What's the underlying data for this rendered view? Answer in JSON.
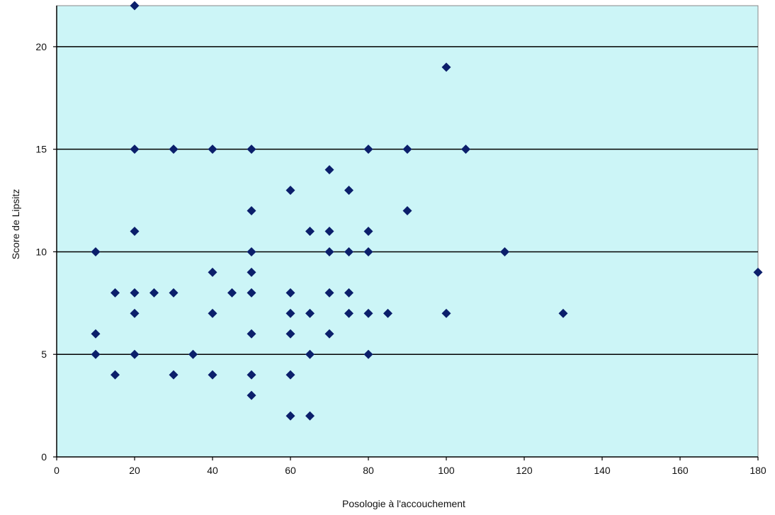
{
  "chart_data": {
    "type": "scatter",
    "title": "",
    "xlabel": "Posologie à l'accouchement",
    "ylabel": "Score de Lipsitz",
    "xlim": [
      0,
      180
    ],
    "ylim": [
      0,
      22
    ],
    "xticks": [
      0,
      20,
      40,
      60,
      80,
      100,
      120,
      140,
      160,
      180
    ],
    "yticks": [
      0,
      5,
      10,
      15,
      20
    ],
    "grid": "horizontal major lines",
    "legend": "none",
    "colors": {
      "plot_background": "#ccf5f7",
      "marker": "#0b1f6b",
      "gridline": "#000000"
    },
    "marker_shape": "diamond",
    "points": [
      {
        "x": 20,
        "y": 22
      },
      {
        "x": 100,
        "y": 19
      },
      {
        "x": 20,
        "y": 15
      },
      {
        "x": 30,
        "y": 15
      },
      {
        "x": 40,
        "y": 15
      },
      {
        "x": 50,
        "y": 15
      },
      {
        "x": 80,
        "y": 15
      },
      {
        "x": 90,
        "y": 15
      },
      {
        "x": 105,
        "y": 15
      },
      {
        "x": 70,
        "y": 14
      },
      {
        "x": 60,
        "y": 13
      },
      {
        "x": 75,
        "y": 13
      },
      {
        "x": 50,
        "y": 12
      },
      {
        "x": 90,
        "y": 12
      },
      {
        "x": 20,
        "y": 11
      },
      {
        "x": 65,
        "y": 11
      },
      {
        "x": 70,
        "y": 11
      },
      {
        "x": 80,
        "y": 11
      },
      {
        "x": 10,
        "y": 10
      },
      {
        "x": 50,
        "y": 10
      },
      {
        "x": 70,
        "y": 10
      },
      {
        "x": 75,
        "y": 10
      },
      {
        "x": 80,
        "y": 10
      },
      {
        "x": 115,
        "y": 10
      },
      {
        "x": 40,
        "y": 9
      },
      {
        "x": 50,
        "y": 9
      },
      {
        "x": 180,
        "y": 9
      },
      {
        "x": 15,
        "y": 8
      },
      {
        "x": 20,
        "y": 8
      },
      {
        "x": 25,
        "y": 8
      },
      {
        "x": 30,
        "y": 8
      },
      {
        "x": 45,
        "y": 8
      },
      {
        "x": 50,
        "y": 8
      },
      {
        "x": 60,
        "y": 8
      },
      {
        "x": 70,
        "y": 8
      },
      {
        "x": 75,
        "y": 8
      },
      {
        "x": 20,
        "y": 7
      },
      {
        "x": 40,
        "y": 7
      },
      {
        "x": 60,
        "y": 7
      },
      {
        "x": 65,
        "y": 7
      },
      {
        "x": 75,
        "y": 7
      },
      {
        "x": 80,
        "y": 7
      },
      {
        "x": 85,
        "y": 7
      },
      {
        "x": 100,
        "y": 7
      },
      {
        "x": 130,
        "y": 7
      },
      {
        "x": 10,
        "y": 6
      },
      {
        "x": 50,
        "y": 6
      },
      {
        "x": 60,
        "y": 6
      },
      {
        "x": 70,
        "y": 6
      },
      {
        "x": 10,
        "y": 5
      },
      {
        "x": 20,
        "y": 5
      },
      {
        "x": 35,
        "y": 5
      },
      {
        "x": 65,
        "y": 5
      },
      {
        "x": 80,
        "y": 5
      },
      {
        "x": 15,
        "y": 4
      },
      {
        "x": 30,
        "y": 4
      },
      {
        "x": 40,
        "y": 4
      },
      {
        "x": 50,
        "y": 4
      },
      {
        "x": 60,
        "y": 4
      },
      {
        "x": 50,
        "y": 3
      },
      {
        "x": 60,
        "y": 2
      },
      {
        "x": 65,
        "y": 2
      }
    ]
  }
}
